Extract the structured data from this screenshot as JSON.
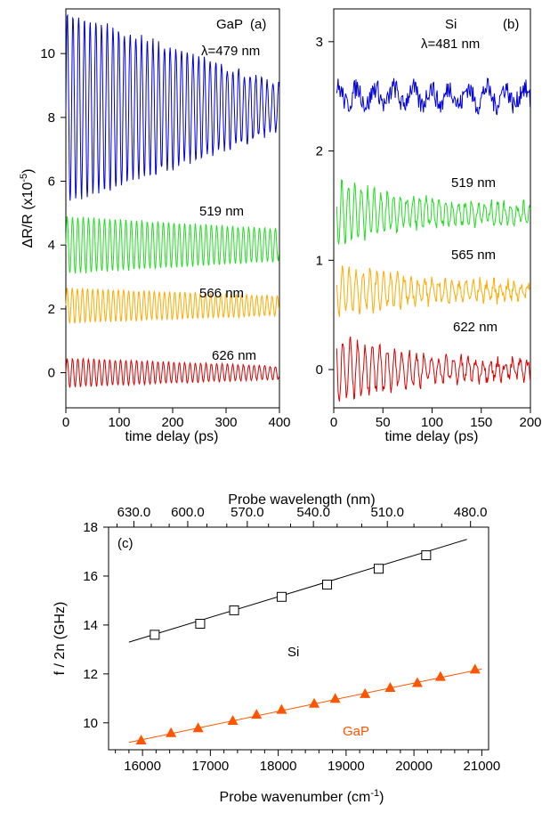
{
  "panel_a": {
    "label": "(a)",
    "material": "GaP",
    "ylabel": "ΔR/R (x10",
    "ylabel_exp": "-5",
    "ylabel_close": ")",
    "xlabel": "time delay (ps)",
    "wavelength_prefix": "λ=479 nm",
    "yticks": [
      "0",
      "2",
      "4",
      "6",
      "8",
      "10"
    ],
    "xticks": [
      "0",
      "100",
      "200",
      "300",
      "400"
    ],
    "colors": {
      "479": "#0000dd",
      "519": "#22dd22",
      "566": "#ffaa00",
      "626": "#dd0000"
    }
  },
  "panel_b": {
    "label": "(b)",
    "material": "Si",
    "wavelength_prefix": "λ=481 nm",
    "xlabel": "time delay (ps)",
    "yticks": [
      "0",
      "1",
      "2",
      "3"
    ],
    "xticks": [
      "0",
      "50",
      "100",
      "150",
      "200"
    ]
  },
  "panel_c": {
    "label": "(c)",
    "top_xlabel": "Probe wavelength (nm)",
    "bottom_xlabel": "Probe wavenumber (cm",
    "bottom_xlabel_exp": "-1",
    "bottom_xlabel_close": ")",
    "ylabel": "f / 2n (GHz)",
    "top_ticks": [
      "630.0",
      "600.0",
      "570.0",
      "540.0",
      "510.0",
      "480.0"
    ],
    "bottom_ticks": [
      "16000",
      "17000",
      "18000",
      "19000",
      "20000",
      "21000"
    ],
    "yticks": [
      "10",
      "12",
      "14",
      "16",
      "18"
    ],
    "si_label": "Si",
    "gap_label": "GaP",
    "gap_color": "#ff5500"
  },
  "chart_data": [
    {
      "type": "line",
      "title": "",
      "panel": "(a) GaP",
      "xlabel": "time delay (ps)",
      "ylabel": "ΔR/R (x10^-5)",
      "xlim": [
        0,
        400
      ],
      "ylim": [
        -1.1,
        11.4
      ],
      "series": [
        {
          "name": "λ=479 nm",
          "offset": 8.3,
          "amplitude_start": 3.0,
          "amplitude_end": 0.7,
          "period_ps": 10.7
        },
        {
          "name": "519 nm",
          "offset": 4.0,
          "amplitude_start": 0.9,
          "amplitude_end": 0.5,
          "period_ps": 10.0
        },
        {
          "name": "566 nm",
          "offset": 2.1,
          "amplitude_start": 0.55,
          "amplitude_end": 0.3,
          "period_ps": 9.6
        },
        {
          "name": "626 nm",
          "offset": 0.0,
          "amplitude_start": 0.45,
          "amplitude_end": 0.2,
          "period_ps": 10.0
        }
      ]
    },
    {
      "type": "line",
      "title": "",
      "panel": "(b) Si",
      "xlabel": "time delay (ps)",
      "xlim": [
        0,
        200
      ],
      "ylim": [
        -0.35,
        3.3
      ],
      "series": [
        {
          "name": "λ=481 nm",
          "offset": 2.5,
          "noise": 0.12
        },
        {
          "name": "519 nm",
          "offset": 1.43,
          "amplitude_start": 0.25,
          "period_ps": 6.6
        },
        {
          "name": "565 nm",
          "offset": 0.72,
          "amplitude_start": 0.18,
          "period_ps": 7.0
        },
        {
          "name": "622 nm",
          "offset": 0.0,
          "amplitude_start": 0.25,
          "period_ps": 7.5
        }
      ]
    },
    {
      "type": "scatter",
      "title": "",
      "panel": "(c)",
      "xlabel": "Probe wavenumber (cm^-1)",
      "x2label": "Probe wavelength (nm)",
      "ylabel": "f / 2n (GHz)",
      "xlim": [
        15500,
        21100
      ],
      "ylim": [
        8.9,
        18
      ],
      "series": [
        {
          "name": "Si",
          "marker": "square",
          "x": [
            16180,
            16850,
            17350,
            18050,
            18720,
            19480,
            20180
          ],
          "y": [
            13.6,
            14.05,
            14.6,
            15.15,
            15.65,
            16.3,
            16.85
          ],
          "fit": {
            "x": [
              15800,
              20780
            ],
            "y": [
              13.3,
              17.5
            ]
          }
        },
        {
          "name": "GaP",
          "marker": "triangle",
          "x": [
            15980,
            16420,
            16820,
            17330,
            17680,
            18050,
            18530,
            18840,
            19280,
            19650,
            20050,
            20390,
            20900
          ],
          "y": [
            9.3,
            9.6,
            9.8,
            10.1,
            10.35,
            10.55,
            10.8,
            11.0,
            11.2,
            11.45,
            11.65,
            11.9,
            12.2
          ],
          "fit": {
            "x": [
              15800,
              21000
            ],
            "y": [
              9.2,
              12.2
            ]
          }
        }
      ]
    }
  ]
}
